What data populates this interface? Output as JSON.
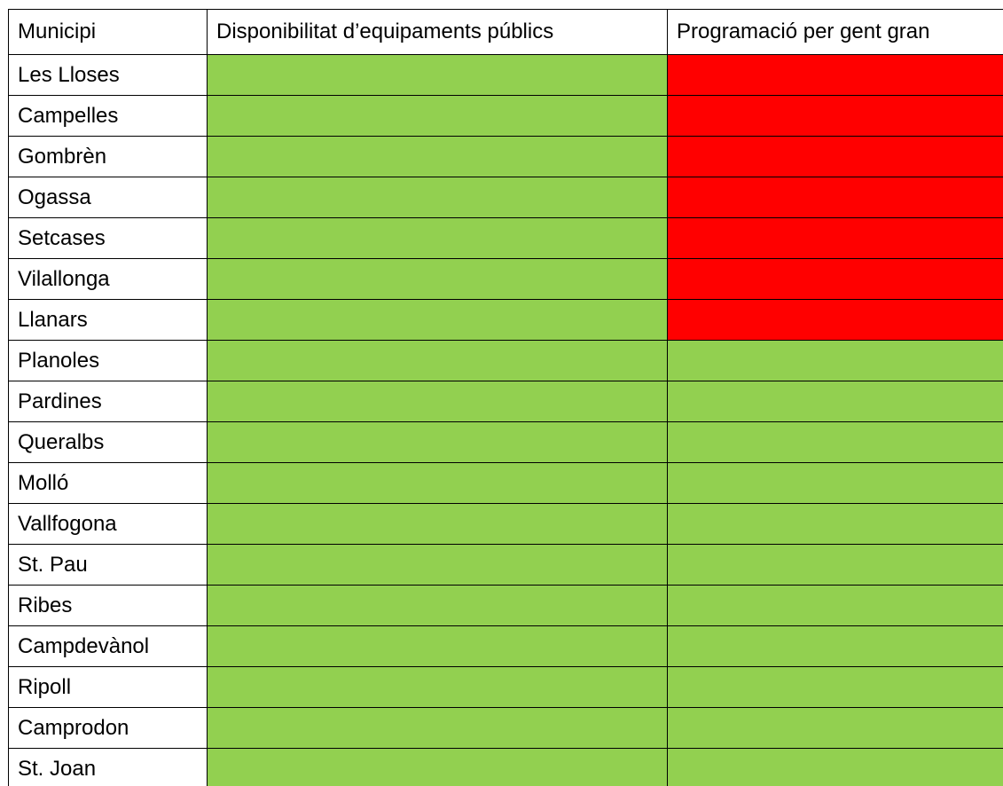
{
  "table": {
    "header": [
      "Municipi",
      "Disponibilitat d’equipaments públics",
      "Programació per gent gran"
    ],
    "rows": [
      {
        "name": "Les Lloses",
        "cells": [
          "#92d050",
          "#ff0000"
        ]
      },
      {
        "name": "Campelles",
        "cells": [
          "#92d050",
          "#ff0000"
        ]
      },
      {
        "name": "Gombrèn",
        "cells": [
          "#92d050",
          "#ff0000"
        ]
      },
      {
        "name": "Ogassa",
        "cells": [
          "#92d050",
          "#ff0000"
        ]
      },
      {
        "name": "Setcases",
        "cells": [
          "#92d050",
          "#ff0000"
        ]
      },
      {
        "name": "Vilallonga",
        "cells": [
          "#92d050",
          "#ff0000"
        ]
      },
      {
        "name": "Llanars",
        "cells": [
          "#92d050",
          "#ff0000"
        ]
      },
      {
        "name": "Planoles",
        "cells": [
          "#92d050",
          "#92d050"
        ]
      },
      {
        "name": "Pardines",
        "cells": [
          "#92d050",
          "#92d050"
        ]
      },
      {
        "name": "Queralbs",
        "cells": [
          "#92d050",
          "#92d050"
        ]
      },
      {
        "name": "Molló",
        "cells": [
          "#92d050",
          "#92d050"
        ]
      },
      {
        "name": "Vallfogona",
        "cells": [
          "#92d050",
          "#92d050"
        ]
      },
      {
        "name": "St. Pau",
        "cells": [
          "#92d050",
          "#92d050"
        ]
      },
      {
        "name": "Ribes",
        "cells": [
          "#92d050",
          "#92d050"
        ]
      },
      {
        "name": "Campdevànol",
        "cells": [
          "#92d050",
          "#92d050"
        ]
      },
      {
        "name": "Ripoll",
        "cells": [
          "#92d050",
          "#92d050"
        ]
      },
      {
        "name": "Camprodon",
        "cells": [
          "#92d050",
          "#92d050"
        ]
      },
      {
        "name": "St. Joan",
        "cells": [
          "#92d050",
          "#92d050"
        ]
      }
    ]
  }
}
